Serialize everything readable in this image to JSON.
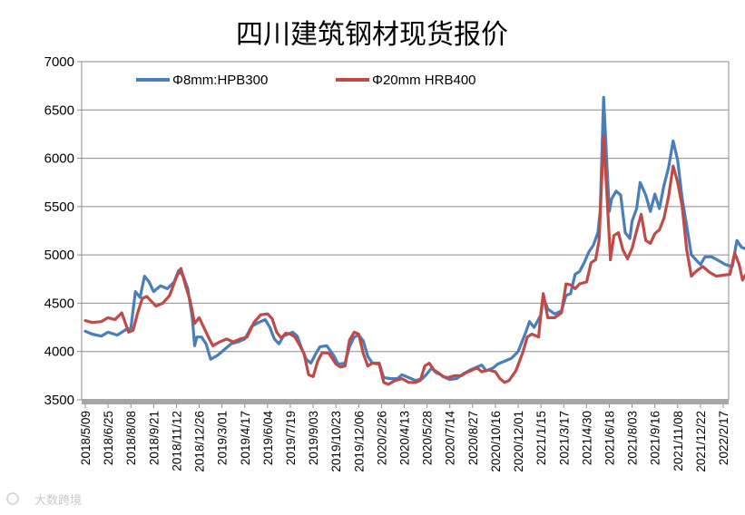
{
  "chart_data": {
    "type": "line",
    "title": "四川建筑钢材现货报价",
    "xlabel": "",
    "ylabel": "",
    "ylim": [
      3500,
      7000
    ],
    "yticks": [
      "7000",
      "6500",
      "6000",
      "5500",
      "5000",
      "4500",
      "4000",
      "3500"
    ],
    "x_tick_labels": [
      "2018/5/09",
      "2018/6/25",
      "2018/8/08",
      "2018/9/21",
      "2018/11/12",
      "2018/12/26",
      "2019/3/01",
      "2019/4/17",
      "2019/6/04",
      "2019/7/19",
      "2019/9/03",
      "2019/10/23",
      "2019/12/06",
      "2020/2/26",
      "2020/4/13",
      "2020/5/28",
      "2020/7/14",
      "2020/8/27",
      "2020/10/16",
      "2020/12/01",
      "2021/1/15",
      "2021/3/17",
      "2021/4/30",
      "2021/6/18",
      "2021/8/03",
      "2021/9/16",
      "2021/11/08",
      "2021/12/22",
      "2022/2/17"
    ],
    "grid": "horizontal",
    "legend_position": "top-left",
    "colors": {
      "series1": "#4a7ebb",
      "series2": "#be4b48",
      "baseline": "#a6a6a6"
    },
    "series": [
      {
        "name": "Φ8mm:HPB300",
        "color": "#4a7ebb",
        "points": [
          [
            0,
            4210
          ],
          [
            0.3,
            4180
          ],
          [
            0.7,
            4160
          ],
          [
            1.0,
            4200
          ],
          [
            1.4,
            4170
          ],
          [
            1.8,
            4230
          ],
          [
            2.0,
            4240
          ],
          [
            2.2,
            4620
          ],
          [
            2.4,
            4560
          ],
          [
            2.6,
            4780
          ],
          [
            2.8,
            4720
          ],
          [
            3.0,
            4620
          ],
          [
            3.3,
            4680
          ],
          [
            3.6,
            4650
          ],
          [
            3.9,
            4720
          ],
          [
            4.1,
            4840
          ],
          [
            4.3,
            4780
          ],
          [
            4.5,
            4650
          ],
          [
            4.7,
            4340
          ],
          [
            4.8,
            4060
          ],
          [
            4.9,
            4150
          ],
          [
            5.1,
            4150
          ],
          [
            5.3,
            4080
          ],
          [
            5.5,
            3920
          ],
          [
            5.8,
            3960
          ],
          [
            6.1,
            4020
          ],
          [
            6.4,
            4080
          ],
          [
            6.7,
            4100
          ],
          [
            7.0,
            4130
          ],
          [
            7.3,
            4260
          ],
          [
            7.6,
            4300
          ],
          [
            7.9,
            4330
          ],
          [
            8.1,
            4250
          ],
          [
            8.3,
            4130
          ],
          [
            8.5,
            4080
          ],
          [
            8.7,
            4160
          ],
          [
            8.9,
            4180
          ],
          [
            9.1,
            4200
          ],
          [
            9.3,
            4160
          ],
          [
            9.5,
            4030
          ],
          [
            9.7,
            3920
          ],
          [
            9.9,
            3880
          ],
          [
            10.1,
            3970
          ],
          [
            10.3,
            4050
          ],
          [
            10.6,
            4060
          ],
          [
            10.9,
            3960
          ],
          [
            11.1,
            3870
          ],
          [
            11.4,
            3880
          ],
          [
            11.6,
            4050
          ],
          [
            11.8,
            4150
          ],
          [
            12.0,
            4170
          ],
          [
            12.2,
            4110
          ],
          [
            12.4,
            3950
          ],
          [
            12.6,
            3880
          ],
          [
            12.9,
            3880
          ],
          [
            13.1,
            3730
          ],
          [
            13.4,
            3720
          ],
          [
            13.7,
            3720
          ],
          [
            13.9,
            3760
          ],
          [
            14.2,
            3730
          ],
          [
            14.5,
            3700
          ],
          [
            14.8,
            3720
          ],
          [
            15.0,
            3770
          ],
          [
            15.2,
            3830
          ],
          [
            15.4,
            3780
          ],
          [
            15.6,
            3760
          ],
          [
            15.8,
            3730
          ],
          [
            16.0,
            3710
          ],
          [
            16.3,
            3720
          ],
          [
            16.6,
            3770
          ],
          [
            16.9,
            3810
          ],
          [
            17.1,
            3830
          ],
          [
            17.4,
            3860
          ],
          [
            17.6,
            3800
          ],
          [
            17.9,
            3830
          ],
          [
            18.1,
            3870
          ],
          [
            18.4,
            3900
          ],
          [
            18.7,
            3930
          ],
          [
            19.0,
            4000
          ],
          [
            19.3,
            4180
          ],
          [
            19.5,
            4310
          ],
          [
            19.7,
            4250
          ],
          [
            20.0,
            4380
          ],
          [
            20.1,
            4560
          ],
          [
            20.3,
            4440
          ],
          [
            20.6,
            4390
          ],
          [
            20.9,
            4420
          ],
          [
            21.1,
            4580
          ],
          [
            21.3,
            4600
          ],
          [
            21.5,
            4800
          ],
          [
            21.7,
            4830
          ],
          [
            21.9,
            4920
          ],
          [
            22.1,
            5030
          ],
          [
            22.3,
            5100
          ],
          [
            22.5,
            5230
          ],
          [
            22.6,
            5450
          ],
          [
            22.75,
            6630
          ],
          [
            22.9,
            5900
          ],
          [
            23.0,
            5450
          ],
          [
            23.1,
            5580
          ],
          [
            23.3,
            5660
          ],
          [
            23.5,
            5620
          ],
          [
            23.7,
            5230
          ],
          [
            23.9,
            5170
          ],
          [
            24.0,
            5350
          ],
          [
            24.2,
            5480
          ],
          [
            24.35,
            5750
          ],
          [
            24.6,
            5620
          ],
          [
            24.8,
            5450
          ],
          [
            25.0,
            5630
          ],
          [
            25.2,
            5480
          ],
          [
            25.4,
            5720
          ],
          [
            25.6,
            5900
          ],
          [
            25.8,
            6180
          ],
          [
            26.0,
            5980
          ],
          [
            26.2,
            5580
          ],
          [
            26.4,
            5300
          ],
          [
            26.6,
            5000
          ],
          [
            26.8,
            4950
          ],
          [
            27.0,
            4900
          ],
          [
            27.2,
            4980
          ],
          [
            27.5,
            4980
          ],
          [
            27.8,
            4940
          ],
          [
            28.1,
            4900
          ],
          [
            28.4,
            4880
          ],
          [
            28.6,
            5150
          ],
          [
            28.8,
            5080
          ],
          [
            29.0,
            5060
          ]
        ]
      },
      {
        "name": "Φ20mm HRB400",
        "color": "#be4b48",
        "points": [
          [
            0,
            4320
          ],
          [
            0.3,
            4300
          ],
          [
            0.7,
            4310
          ],
          [
            1.0,
            4350
          ],
          [
            1.3,
            4330
          ],
          [
            1.6,
            4400
          ],
          [
            1.9,
            4200
          ],
          [
            2.1,
            4220
          ],
          [
            2.3,
            4400
          ],
          [
            2.5,
            4550
          ],
          [
            2.7,
            4570
          ],
          [
            2.9,
            4520
          ],
          [
            3.1,
            4470
          ],
          [
            3.4,
            4500
          ],
          [
            3.7,
            4580
          ],
          [
            4.0,
            4770
          ],
          [
            4.2,
            4860
          ],
          [
            4.4,
            4680
          ],
          [
            4.6,
            4530
          ],
          [
            4.8,
            4290
          ],
          [
            5.0,
            4350
          ],
          [
            5.2,
            4250
          ],
          [
            5.4,
            4150
          ],
          [
            5.6,
            4060
          ],
          [
            5.9,
            4100
          ],
          [
            6.2,
            4130
          ],
          [
            6.5,
            4100
          ],
          [
            6.8,
            4130
          ],
          [
            7.1,
            4150
          ],
          [
            7.4,
            4300
          ],
          [
            7.7,
            4380
          ],
          [
            8.0,
            4390
          ],
          [
            8.2,
            4340
          ],
          [
            8.4,
            4200
          ],
          [
            8.6,
            4140
          ],
          [
            8.8,
            4190
          ],
          [
            9.0,
            4180
          ],
          [
            9.2,
            4150
          ],
          [
            9.4,
            4070
          ],
          [
            9.6,
            3980
          ],
          [
            9.8,
            3760
          ],
          [
            10.0,
            3740
          ],
          [
            10.2,
            3900
          ],
          [
            10.4,
            3990
          ],
          [
            10.7,
            3980
          ],
          [
            11.0,
            3870
          ],
          [
            11.2,
            3840
          ],
          [
            11.4,
            3850
          ],
          [
            11.6,
            4120
          ],
          [
            11.8,
            4200
          ],
          [
            12.0,
            4180
          ],
          [
            12.2,
            3980
          ],
          [
            12.4,
            3850
          ],
          [
            12.6,
            3880
          ],
          [
            12.9,
            3870
          ],
          [
            13.1,
            3680
          ],
          [
            13.3,
            3660
          ],
          [
            13.6,
            3700
          ],
          [
            13.9,
            3720
          ],
          [
            14.2,
            3680
          ],
          [
            14.5,
            3680
          ],
          [
            14.7,
            3700
          ],
          [
            14.9,
            3850
          ],
          [
            15.1,
            3880
          ],
          [
            15.3,
            3810
          ],
          [
            15.5,
            3780
          ],
          [
            15.7,
            3740
          ],
          [
            15.9,
            3730
          ],
          [
            16.2,
            3750
          ],
          [
            16.5,
            3750
          ],
          [
            16.7,
            3780
          ],
          [
            16.9,
            3800
          ],
          [
            17.2,
            3830
          ],
          [
            17.4,
            3790
          ],
          [
            17.7,
            3810
          ],
          [
            18.0,
            3790
          ],
          [
            18.2,
            3720
          ],
          [
            18.4,
            3680
          ],
          [
            18.6,
            3700
          ],
          [
            18.9,
            3800
          ],
          [
            19.2,
            3990
          ],
          [
            19.4,
            4150
          ],
          [
            19.6,
            4180
          ],
          [
            19.9,
            4150
          ],
          [
            20.0,
            4400
          ],
          [
            20.1,
            4600
          ],
          [
            20.3,
            4350
          ],
          [
            20.6,
            4350
          ],
          [
            20.9,
            4400
          ],
          [
            21.1,
            4700
          ],
          [
            21.3,
            4690
          ],
          [
            21.5,
            4650
          ],
          [
            21.7,
            4700
          ],
          [
            22.0,
            4720
          ],
          [
            22.2,
            4920
          ],
          [
            22.4,
            4950
          ],
          [
            22.55,
            5150
          ],
          [
            22.75,
            6230
          ],
          [
            22.9,
            5600
          ],
          [
            23.05,
            4950
          ],
          [
            23.2,
            5200
          ],
          [
            23.4,
            5230
          ],
          [
            23.6,
            5050
          ],
          [
            23.8,
            4960
          ],
          [
            24.0,
            5070
          ],
          [
            24.2,
            5250
          ],
          [
            24.4,
            5420
          ],
          [
            24.6,
            5150
          ],
          [
            24.8,
            5120
          ],
          [
            25.0,
            5220
          ],
          [
            25.2,
            5260
          ],
          [
            25.4,
            5380
          ],
          [
            25.6,
            5600
          ],
          [
            25.8,
            5920
          ],
          [
            26.0,
            5750
          ],
          [
            26.2,
            5500
          ],
          [
            26.4,
            5050
          ],
          [
            26.6,
            4780
          ],
          [
            26.8,
            4830
          ],
          [
            27.1,
            4880
          ],
          [
            27.4,
            4820
          ],
          [
            27.7,
            4780
          ],
          [
            28.0,
            4790
          ],
          [
            28.3,
            4800
          ],
          [
            28.5,
            5020
          ],
          [
            28.7,
            4900
          ],
          [
            28.85,
            4740
          ],
          [
            29.0,
            4800
          ]
        ]
      }
    ]
  },
  "watermark": "大数跨境"
}
